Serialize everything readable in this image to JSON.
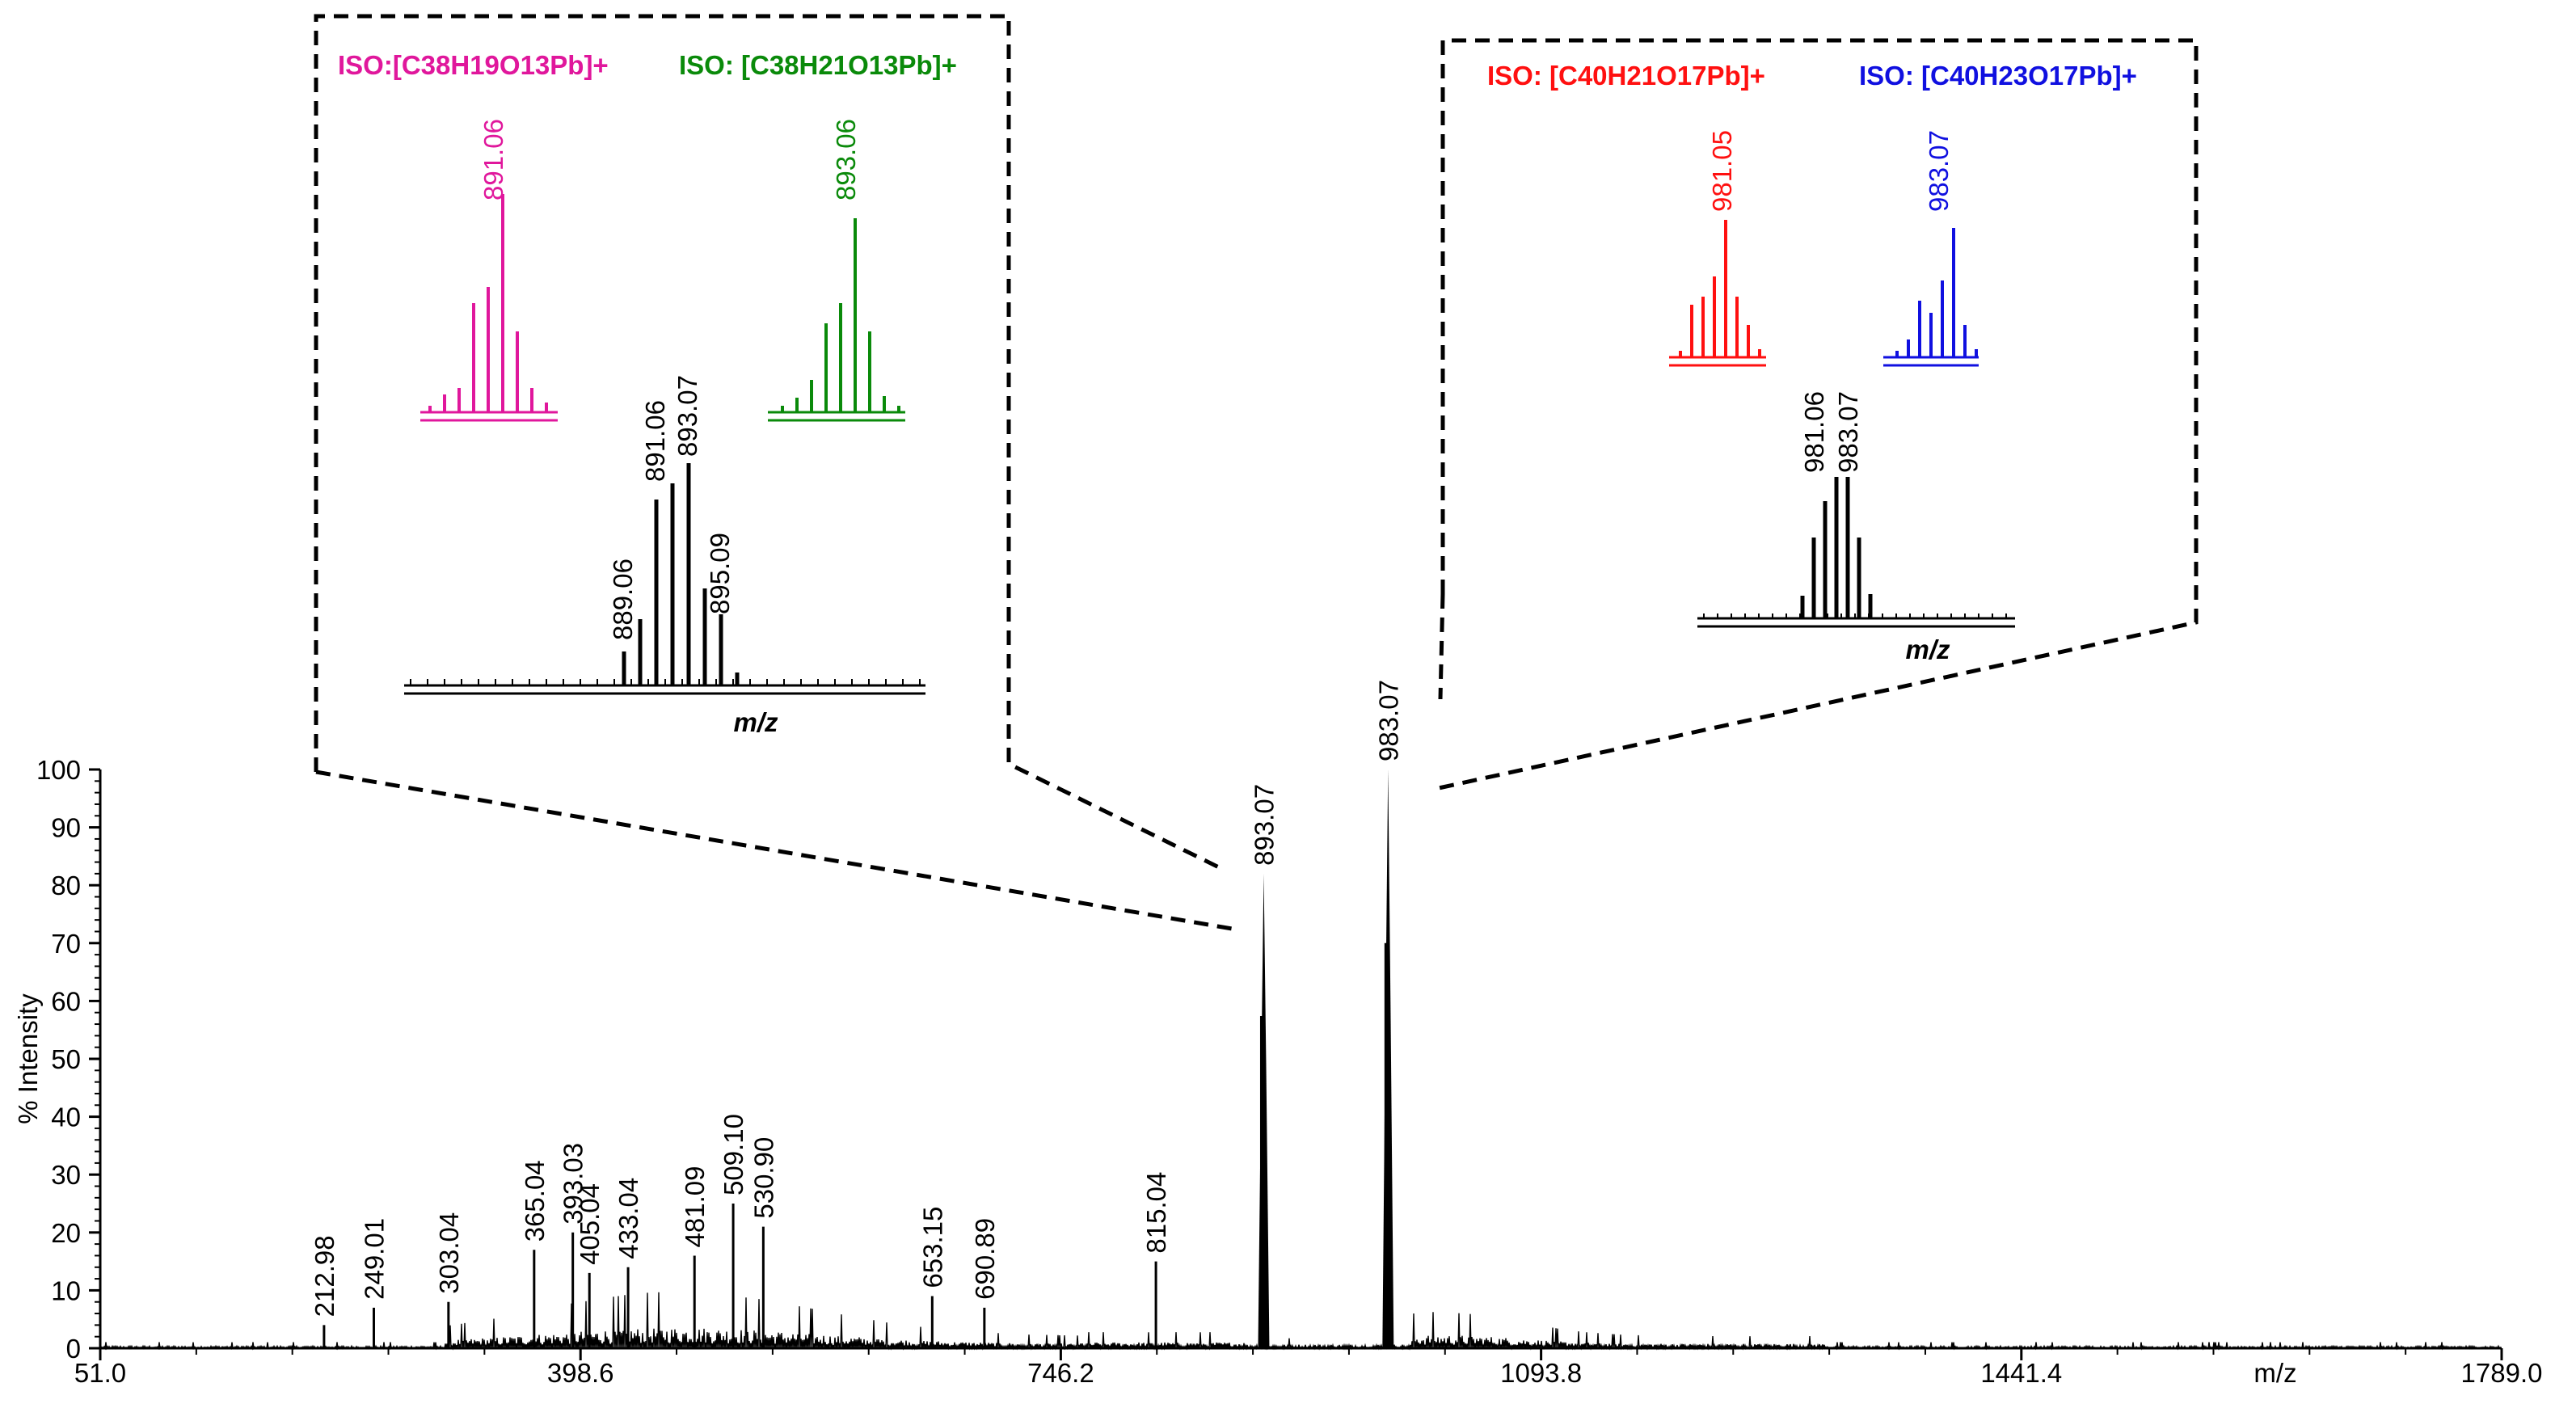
{
  "chart_data": {
    "type": "line",
    "title": "",
    "xlabel": "m/z",
    "ylabel": "% Intensity",
    "xlim": [
      51.0,
      1789.0
    ],
    "ylim": [
      0,
      100
    ],
    "x_tick_labels": [
      "51.0",
      "398.6",
      "746.2",
      "1093.8",
      "1441.4",
      "1789.0"
    ],
    "y_tick_labels": [
      "0",
      "10",
      "20",
      "30",
      "40",
      "50",
      "60",
      "70",
      "80",
      "90",
      "100"
    ],
    "peaks": [
      {
        "mz": 212.98,
        "label": "212.98",
        "intensity": 4
      },
      {
        "mz": 249.01,
        "label": "249.01",
        "intensity": 7
      },
      {
        "mz": 303.04,
        "label": "303.04",
        "intensity": 8
      },
      {
        "mz": 365.04,
        "label": "365.04",
        "intensity": 17
      },
      {
        "mz": 393.03,
        "label": "393.03",
        "intensity": 20
      },
      {
        "mz": 405.04,
        "label": "405.04",
        "intensity": 13
      },
      {
        "mz": 433.04,
        "label": "433.04",
        "intensity": 14
      },
      {
        "mz": 481.09,
        "label": "481.09",
        "intensity": 16
      },
      {
        "mz": 509.1,
        "label": "509.10",
        "intensity": 25
      },
      {
        "mz": 530.9,
        "label": "530.90",
        "intensity": 21
      },
      {
        "mz": 653.15,
        "label": "653.15",
        "intensity": 9
      },
      {
        "mz": 690.89,
        "label": "690.89",
        "intensity": 7
      },
      {
        "mz": 815.04,
        "label": "815.04",
        "intensity": 15
      },
      {
        "mz": 893.07,
        "label": "893.07",
        "intensity": 82
      },
      {
        "mz": 983.07,
        "label": "983.07",
        "intensity": 100
      }
    ],
    "insets": [
      {
        "name": "inset-893",
        "xlabel": "m/z",
        "theoretical": [
          {
            "label": "ISO:[C38H19O13Pb]+",
            "peak_label": "891.06",
            "color": "#e0179c"
          },
          {
            "label": "ISO: [C38H21O13Pb]+",
            "peak_label": "893.06",
            "color": "#0a8a0a"
          }
        ],
        "experimental_peak_labels": [
          "889.06",
          "891.06",
          "893.07",
          "895.09"
        ]
      },
      {
        "name": "inset-983",
        "xlabel": "m/z",
        "theoretical": [
          {
            "label": "ISO: [C40H21O17Pb]+",
            "peak_label": "981.05",
            "color": "#ff1010"
          },
          {
            "label": "ISO: [C40H23O17Pb]+",
            "peak_label": "983.07",
            "color": "#1010e0"
          }
        ],
        "experimental_peak_labels": [
          "981.06",
          "983.07"
        ]
      }
    ]
  }
}
